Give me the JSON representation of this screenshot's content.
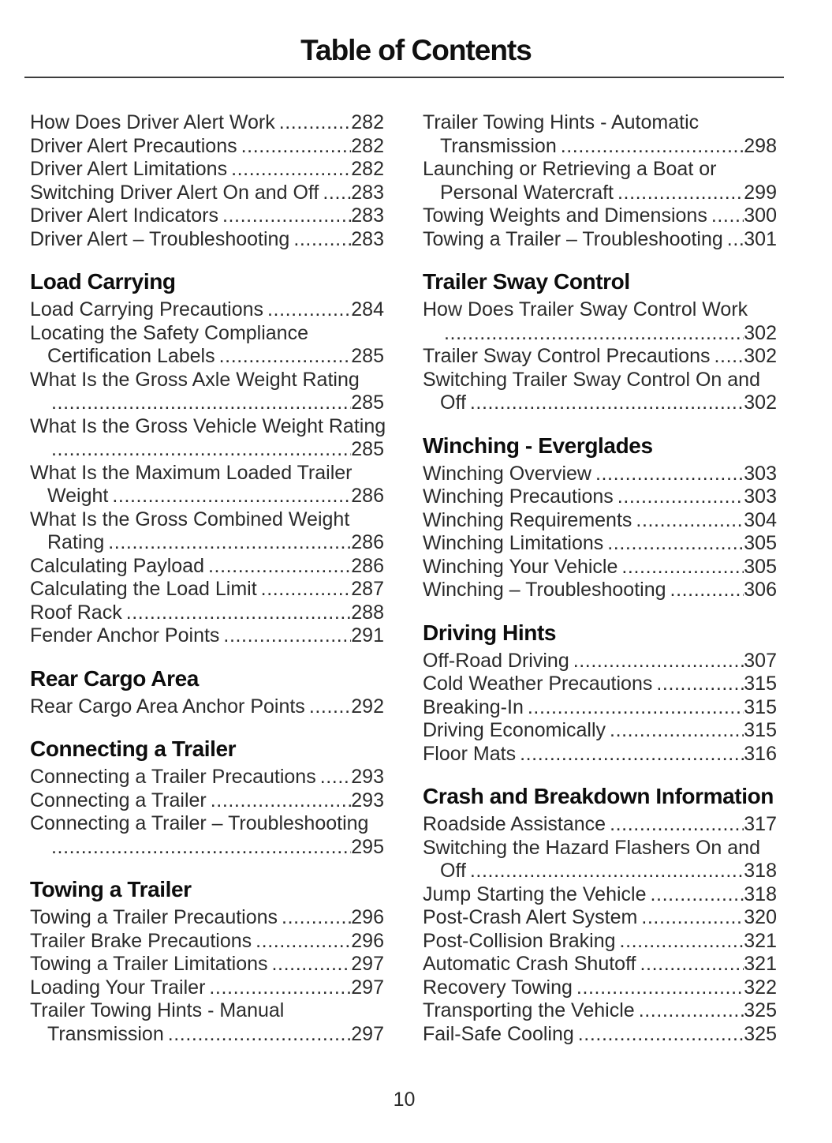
{
  "page": {
    "title": "Table of Contents",
    "page_number": "10"
  },
  "columns": [
    {
      "sections": [
        {
          "heading": null,
          "entries": [
            {
              "text": "How Does Driver Alert Work",
              "page": "282"
            },
            {
              "text": "Driver Alert Precautions",
              "page": "282"
            },
            {
              "text": "Driver Alert Limitations",
              "page": "282"
            },
            {
              "text": "Switching Driver Alert On and Off",
              "page": "283"
            },
            {
              "text": "Driver Alert Indicators",
              "page": "283"
            },
            {
              "text": "Driver Alert – Troubleshooting",
              "page": "283"
            }
          ]
        },
        {
          "heading": "Load Carrying",
          "entries": [
            {
              "text": "Load Carrying Precautions",
              "page": "284"
            },
            {
              "text": "Locating the Safety Compliance",
              "cont": "Certification Labels",
              "page": "285"
            },
            {
              "text": "What Is the Gross Axle Weight Rating",
              "cont": "",
              "page": "285"
            },
            {
              "text": "What Is the Gross Vehicle Weight Rating",
              "cont": "",
              "page": "285"
            },
            {
              "text": "What Is the Maximum Loaded Trailer",
              "cont": "Weight",
              "page": "286"
            },
            {
              "text": "What Is the Gross Combined Weight",
              "cont": "Rating",
              "page": "286"
            },
            {
              "text": "Calculating Payload",
              "page": "286"
            },
            {
              "text": "Calculating the Load Limit",
              "page": "287"
            },
            {
              "text": "Roof Rack",
              "page": "288"
            },
            {
              "text": "Fender Anchor Points",
              "page": "291"
            }
          ]
        },
        {
          "heading": "Rear Cargo Area",
          "entries": [
            {
              "text": "Rear Cargo Area Anchor Points",
              "page": "292"
            }
          ]
        },
        {
          "heading": "Connecting a Trailer",
          "entries": [
            {
              "text": "Connecting a Trailer Precautions",
              "page": "293"
            },
            {
              "text": "Connecting a Trailer",
              "page": "293"
            },
            {
              "text": "Connecting a Trailer – Troubleshooting",
              "cont": "",
              "page": "295"
            }
          ]
        },
        {
          "heading": "Towing a Trailer",
          "entries": [
            {
              "text": "Towing a Trailer Precautions",
              "page": "296"
            },
            {
              "text": "Trailer Brake Precautions",
              "page": "296"
            },
            {
              "text": "Towing a Trailer Limitations",
              "page": "297"
            },
            {
              "text": "Loading Your Trailer",
              "page": "297"
            },
            {
              "text": "Trailer Towing Hints - Manual",
              "cont": "Transmission",
              "page": "297"
            }
          ]
        }
      ]
    },
    {
      "sections": [
        {
          "heading": null,
          "entries": [
            {
              "text": "Trailer Towing Hints - Automatic",
              "cont": "Transmission",
              "page": "298"
            },
            {
              "text": "Launching or Retrieving a Boat or",
              "cont": "Personal Watercraft",
              "page": "299"
            },
            {
              "text": "Towing Weights and Dimensions",
              "page": "300"
            },
            {
              "text": "Towing a Trailer – Troubleshooting",
              "page": "301"
            }
          ]
        },
        {
          "heading": "Trailer Sway Control",
          "entries": [
            {
              "text": "How Does Trailer Sway Control Work",
              "cont": "",
              "page": "302"
            },
            {
              "text": "Trailer Sway Control Precautions",
              "page": "302"
            },
            {
              "text": "Switching Trailer Sway Control On and",
              "cont": "Off",
              "page": "302"
            }
          ]
        },
        {
          "heading": "Winching - Everglades",
          "entries": [
            {
              "text": "Winching Overview",
              "page": "303"
            },
            {
              "text": "Winching Precautions",
              "page": "303"
            },
            {
              "text": "Winching Requirements",
              "page": "304"
            },
            {
              "text": "Winching Limitations",
              "page": "305"
            },
            {
              "text": "Winching Your Vehicle",
              "page": "305"
            },
            {
              "text": "Winching – Troubleshooting",
              "page": "306"
            }
          ]
        },
        {
          "heading": "Driving Hints",
          "entries": [
            {
              "text": "Off-Road Driving",
              "page": "307"
            },
            {
              "text": "Cold Weather Precautions",
              "page": "315"
            },
            {
              "text": "Breaking-In",
              "page": "315"
            },
            {
              "text": "Driving Economically",
              "page": "315"
            },
            {
              "text": "Floor Mats",
              "page": "316"
            }
          ]
        },
        {
          "heading": "Crash and Breakdown Information",
          "entries": [
            {
              "text": "Roadside Assistance",
              "page": "317"
            },
            {
              "text": "Switching the Hazard Flashers On and",
              "cont": "Off",
              "page": "318"
            },
            {
              "text": "Jump Starting the Vehicle",
              "page": "318"
            },
            {
              "text": "Post-Crash Alert System",
              "page": "320"
            },
            {
              "text": "Post-Collision Braking",
              "page": "321"
            },
            {
              "text": "Automatic Crash Shutoff",
              "page": "321"
            },
            {
              "text": "Recovery Towing",
              "page": "322"
            },
            {
              "text": "Transporting the Vehicle",
              "page": "325"
            },
            {
              "text": "Fail-Safe Cooling",
              "page": "325"
            }
          ]
        }
      ]
    }
  ]
}
